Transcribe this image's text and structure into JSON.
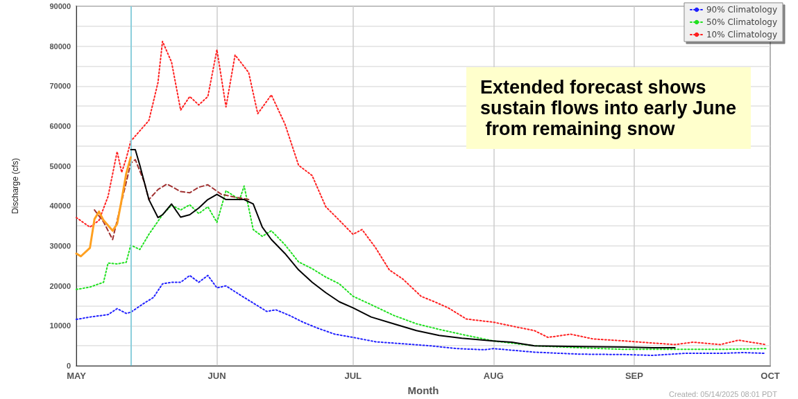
{
  "chart_data": {
    "type": "line",
    "xlabel": "Month",
    "ylabel": "Discharge (cfs)",
    "xlim": [
      "2025-05-01",
      "2025-10-01"
    ],
    "xticks": [
      {
        "value": "2025-05-01",
        "label": "MAY"
      },
      {
        "value": "2025-06-01",
        "label": "JUN"
      },
      {
        "value": "2025-07-01",
        "label": "JUL"
      },
      {
        "value": "2025-08-01",
        "label": "AUG"
      },
      {
        "value": "2025-09-01",
        "label": "SEP"
      },
      {
        "value": "2025-10-01",
        "label": "OCT"
      }
    ],
    "ylim": [
      0,
      90000
    ],
    "yticks": [
      0,
      {
        "value": 5000,
        "label": null
      },
      10000,
      {
        "value": 15000,
        "label": null
      },
      20000,
      {
        "value": 25000,
        "label": null
      },
      30000,
      {
        "value": 35000,
        "label": null
      },
      40000,
      {
        "value": 45000,
        "label": null
      },
      50000,
      {
        "value": 55000,
        "label": null
      },
      60000,
      {
        "value": 65000,
        "label": null
      },
      70000,
      {
        "value": 75000,
        "label": null
      },
      80000,
      {
        "value": 85000,
        "label": null
      },
      90000
    ],
    "grid": true,
    "legend": "top right",
    "marker": "none",
    "ref_lines": [
      {
        "axis": "x",
        "value": "2025-05-13",
        "color": "#8ccfdc"
      }
    ],
    "annotations": [
      "Extended forecast shows sustain flows into early June from remaining snow",
      "Created: 05/14/2025 08:01 PDT"
    ],
    "series": [
      {
        "name": "90% Climatology",
        "color": "#2020ff",
        "line_style": "dotted",
        "x": [
          "2025-05-01",
          "2025-05-04",
          "2025-05-08",
          "2025-05-10",
          "2025-05-12",
          "2025-05-13",
          "2025-05-16",
          "2025-05-18",
          "2025-05-20",
          "2025-05-22",
          "2025-05-24",
          "2025-05-26",
          "2025-05-28",
          "2025-05-30",
          "2025-06-01",
          "2025-06-03",
          "2025-06-06",
          "2025-06-09",
          "2025-06-12",
          "2025-06-14",
          "2025-06-17",
          "2025-06-20",
          "2025-06-23",
          "2025-06-27",
          "2025-07-01",
          "2025-07-06",
          "2025-07-12",
          "2025-07-18",
          "2025-07-24",
          "2025-07-30",
          "2025-08-01",
          "2025-08-10",
          "2025-08-20",
          "2025-08-30",
          "2025-09-05",
          "2025-09-12",
          "2025-09-20",
          "2025-09-25",
          "2025-09-30"
        ],
        "values": [
          11600,
          12200,
          12800,
          14300,
          13100,
          13400,
          15700,
          17100,
          20500,
          20900,
          20900,
          22600,
          20900,
          22600,
          19500,
          20000,
          17800,
          15700,
          13600,
          14000,
          12600,
          10900,
          9500,
          7900,
          7100,
          6000,
          5500,
          5000,
          4300,
          4000,
          4300,
          3400,
          2900,
          2800,
          2600,
          3100,
          3100,
          3300,
          3100
        ]
      },
      {
        "name": "50% Climatology",
        "color": "#20e020",
        "line_style": "dotted",
        "x": [
          "2025-05-01",
          "2025-05-04",
          "2025-05-07",
          "2025-05-08",
          "2025-05-10",
          "2025-05-12",
          "2025-05-13",
          "2025-05-15",
          "2025-05-17",
          "2025-05-20",
          "2025-05-22",
          "2025-05-24",
          "2025-05-26",
          "2025-05-28",
          "2025-05-30",
          "2025-06-01",
          "2025-06-03",
          "2025-06-06",
          "2025-06-07",
          "2025-06-09",
          "2025-06-11",
          "2025-06-13",
          "2025-06-16",
          "2025-06-19",
          "2025-06-22",
          "2025-06-25",
          "2025-06-28",
          "2025-07-01",
          "2025-07-05",
          "2025-07-10",
          "2025-07-15",
          "2025-07-20",
          "2025-07-26",
          "2025-08-01",
          "2025-08-10",
          "2025-08-20",
          "2025-08-30",
          "2025-09-10",
          "2025-09-20",
          "2025-09-30"
        ],
        "values": [
          19100,
          19700,
          20900,
          25700,
          25500,
          25900,
          30200,
          29100,
          32900,
          37800,
          40200,
          39000,
          40300,
          38100,
          39800,
          35900,
          43800,
          41600,
          45000,
          34100,
          32400,
          33800,
          30300,
          26000,
          24300,
          22200,
          20500,
          17400,
          15300,
          12600,
          10500,
          9100,
          7600,
          6200,
          5000,
          4500,
          4100,
          4100,
          4100,
          4300
        ]
      },
      {
        "name": "10% Climatology",
        "color": "#ff2020",
        "line_style": "dotted",
        "x": [
          "2025-05-01",
          "2025-05-04",
          "2025-05-06",
          "2025-05-08",
          "2025-05-10",
          "2025-05-11",
          "2025-05-12",
          "2025-05-13",
          "2025-05-15",
          "2025-05-17",
          "2025-05-19",
          "2025-05-20",
          "2025-05-22",
          "2025-05-24",
          "2025-05-26",
          "2025-05-28",
          "2025-05-30",
          "2025-06-01",
          "2025-06-03",
          "2025-06-05",
          "2025-06-08",
          "2025-06-10",
          "2025-06-13",
          "2025-06-16",
          "2025-06-19",
          "2025-06-22",
          "2025-06-25",
          "2025-06-28",
          "2025-07-01",
          "2025-07-03",
          "2025-07-06",
          "2025-07-09",
          "2025-07-12",
          "2025-07-16",
          "2025-07-19",
          "2025-07-22",
          "2025-07-26",
          "2025-08-01",
          "2025-08-06",
          "2025-08-10",
          "2025-08-13",
          "2025-08-18",
          "2025-08-23",
          "2025-08-30",
          "2025-09-05",
          "2025-09-10",
          "2025-09-14",
          "2025-09-20",
          "2025-09-24",
          "2025-09-30"
        ],
        "values": [
          37100,
          34700,
          36400,
          42400,
          53600,
          48400,
          51900,
          56200,
          58800,
          61400,
          70900,
          81200,
          76000,
          64000,
          67400,
          65300,
          67400,
          79100,
          64800,
          77800,
          73400,
          63100,
          67800,
          60500,
          50200,
          47600,
          39800,
          36400,
          32900,
          34100,
          29500,
          24000,
          21700,
          17400,
          16000,
          14500,
          11700,
          10900,
          9700,
          8800,
          7100,
          7900,
          6700,
          6200,
          5700,
          5300,
          5900,
          5300,
          6400,
          5300
        ]
      },
      {
        "color": "#ffa020",
        "line_style": "solid",
        "x": [
          "2025-05-01",
          "2025-05-02",
          "2025-05-04",
          "2025-05-05",
          "2025-05-06",
          "2025-05-07",
          "2025-05-09",
          "2025-05-10",
          "2025-05-11",
          "2025-05-12",
          "2025-05-13"
        ],
        "values": [
          28100,
          27400,
          29500,
          36700,
          38600,
          36400,
          33800,
          35500,
          41600,
          48100,
          52200
        ]
      },
      {
        "color": "#a03030",
        "line_style": "dashed",
        "x": [
          "2025-05-05",
          "2025-05-07",
          "2025-05-09",
          "2025-05-10",
          "2025-05-12",
          "2025-05-13",
          "2025-05-14",
          "2025-05-16",
          "2025-05-17",
          "2025-05-19",
          "2025-05-21",
          "2025-05-24",
          "2025-05-26",
          "2025-05-28",
          "2025-05-30",
          "2025-06-02",
          "2025-06-05",
          "2025-06-08"
        ],
        "values": [
          39000,
          36000,
          31600,
          36400,
          45900,
          50700,
          51600,
          45900,
          41600,
          44100,
          45500,
          43600,
          43300,
          44700,
          45300,
          42900,
          42200,
          41600
        ]
      },
      {
        "color": "#000000",
        "line_style": "solid",
        "x": [
          "2025-05-13",
          "2025-05-14",
          "2025-05-15",
          "2025-05-17",
          "2025-05-19",
          "2025-05-20",
          "2025-05-22",
          "2025-05-24",
          "2025-05-26",
          "2025-05-28",
          "2025-05-30",
          "2025-06-01",
          "2025-06-03",
          "2025-06-05",
          "2025-06-07",
          "2025-06-09",
          "2025-06-11",
          "2025-06-13",
          "2025-06-16",
          "2025-06-19",
          "2025-06-22",
          "2025-06-25",
          "2025-06-28",
          "2025-07-01",
          "2025-07-05",
          "2025-07-10",
          "2025-07-15",
          "2025-07-20",
          "2025-07-25",
          "2025-08-01",
          "2025-08-05",
          "2025-08-10",
          "2025-08-20",
          "2025-08-30",
          "2025-09-05",
          "2025-09-10"
        ],
        "values": [
          54100,
          54100,
          50200,
          41600,
          37100,
          37800,
          40500,
          37200,
          37800,
          39500,
          41600,
          42900,
          41600,
          41600,
          41600,
          40500,
          34700,
          31600,
          28100,
          24000,
          20900,
          18300,
          16000,
          14500,
          12200,
          10500,
          8800,
          7600,
          6900,
          6200,
          5900,
          5000,
          4800,
          4700,
          4500,
          4500
        ]
      }
    ]
  }
}
